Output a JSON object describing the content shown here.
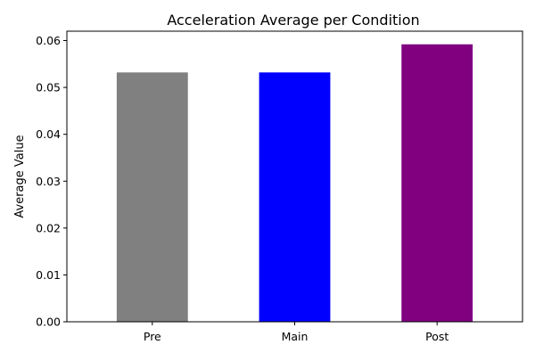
{
  "chart_data": {
    "type": "bar",
    "title": "Acceleration Average per Condition",
    "xlabel": "",
    "ylabel": "Average Value",
    "categories": [
      "Pre",
      "Main",
      "Post"
    ],
    "values": [
      0.0532,
      0.0532,
      0.0592
    ],
    "colors": [
      "#808080",
      "#0000ff",
      "#800080"
    ],
    "ylim": [
      0,
      0.062
    ],
    "yticks": [
      0.0,
      0.01,
      0.02,
      0.03,
      0.04,
      0.05,
      0.06
    ],
    "ytick_labels": [
      "0.00",
      "0.01",
      "0.02",
      "0.03",
      "0.04",
      "0.05",
      "0.06"
    ],
    "grid": false,
    "legend": "none"
  }
}
